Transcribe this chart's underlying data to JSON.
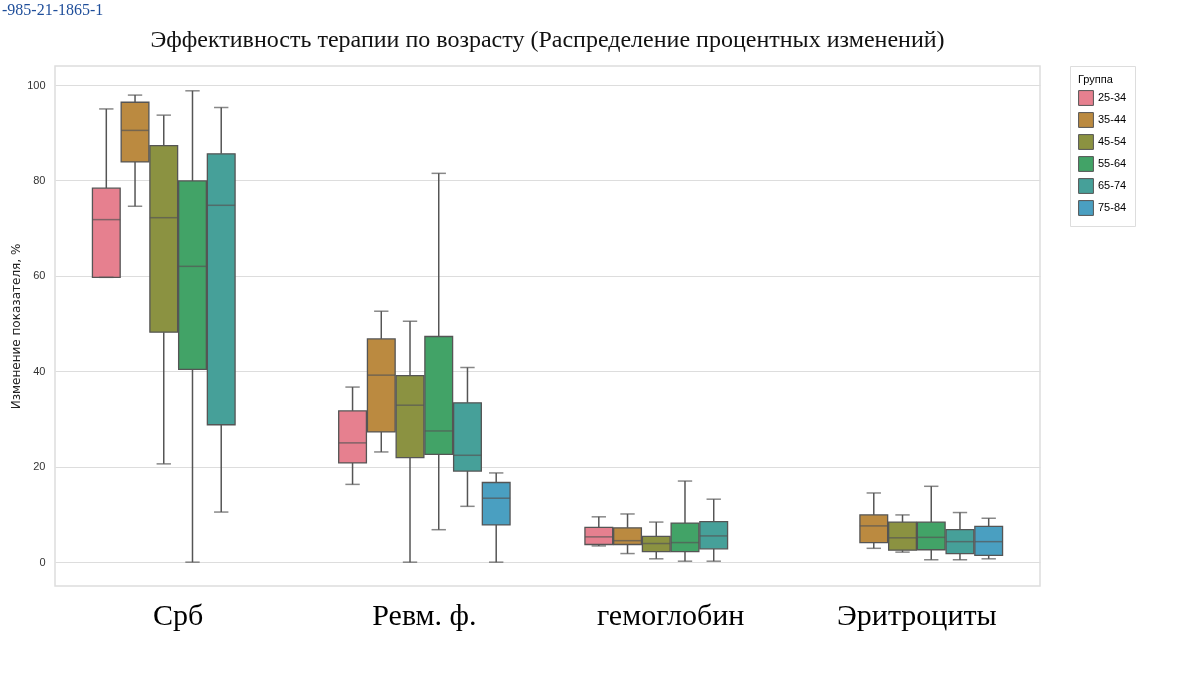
{
  "chart_data": {
    "type": "box",
    "title": "Эффективность терапии по возрасту (Распределение процентных изменений)",
    "ylabel": "Изменение показателя, %",
    "legend_title": "Группа",
    "annotations": [
      "-985-21-1865-1"
    ],
    "categories": [
      "Срб",
      "Ревм. ф.",
      "гемоглобин",
      "Эритроциты"
    ],
    "ylim": [
      -5,
      104
    ],
    "yticks": [
      0,
      20,
      40,
      60,
      80,
      100
    ],
    "grid": "y",
    "legend": "top right",
    "series": [
      {
        "name": "25-34",
        "color": "#e6808f",
        "boxes": [
          {
            "low": 59.7,
            "q1": 59.7,
            "median": 71.8,
            "q3": 78.4,
            "high": 95.0
          },
          {
            "low": 16.3,
            "q1": 20.8,
            "median": 25.0,
            "q3": 31.7,
            "high": 36.7
          },
          {
            "low": 3.4,
            "q1": 3.7,
            "median": 5.3,
            "q3": 7.3,
            "high": 9.5
          },
          null
        ]
      },
      {
        "name": "35-44",
        "color": "#bb8a40",
        "boxes": [
          {
            "low": 74.6,
            "q1": 83.9,
            "median": 90.5,
            "q3": 96.4,
            "high": 97.9
          },
          {
            "low": 23.1,
            "q1": 27.3,
            "median": 39.2,
            "q3": 46.8,
            "high": 52.6
          },
          {
            "low": 1.8,
            "q1": 3.7,
            "median": 4.5,
            "q3": 7.2,
            "high": 10.1
          },
          {
            "low": 2.9,
            "q1": 4.1,
            "median": 7.6,
            "q3": 9.9,
            "high": 14.5
          }
        ]
      },
      {
        "name": "45-54",
        "color": "#8b9241",
        "boxes": [
          {
            "low": 20.6,
            "q1": 48.2,
            "median": 72.2,
            "q3": 87.3,
            "high": 93.7
          },
          {
            "low": 0,
            "q1": 21.9,
            "median": 32.9,
            "q3": 39.1,
            "high": 50.5
          },
          {
            "low": 0.7,
            "q1": 2.2,
            "median": 3.9,
            "q3": 5.4,
            "high": 8.4
          },
          {
            "low": 2.1,
            "q1": 2.5,
            "median": 5.1,
            "q3": 8.4,
            "high": 9.9
          }
        ]
      },
      {
        "name": "55-64",
        "color": "#42a367",
        "boxes": [
          {
            "low": 0,
            "q1": 40.4,
            "median": 62.0,
            "q3": 79.9,
            "high": 98.8
          },
          {
            "low": 6.8,
            "q1": 22.6,
            "median": 27.5,
            "q3": 47.3,
            "high": 81.5
          },
          {
            "low": 0.2,
            "q1": 2.2,
            "median": 4.1,
            "q3": 8.2,
            "high": 17.0
          },
          {
            "low": 0.5,
            "q1": 2.6,
            "median": 5.2,
            "q3": 8.4,
            "high": 15.9
          }
        ]
      },
      {
        "name": "65-74",
        "color": "#46a099",
        "boxes": [
          {
            "low": 10.5,
            "q1": 28.8,
            "median": 74.8,
            "q3": 85.6,
            "high": 95.3
          },
          {
            "low": 11.7,
            "q1": 19.1,
            "median": 22.4,
            "q3": 33.4,
            "high": 40.8
          },
          {
            "low": 0.2,
            "q1": 2.8,
            "median": 5.5,
            "q3": 8.5,
            "high": 13.2
          },
          {
            "low": 0.5,
            "q1": 1.8,
            "median": 4.3,
            "q3": 6.8,
            "high": 10.4
          }
        ]
      },
      {
        "name": "75-84",
        "color": "#4a9fc1",
        "boxes": [
          null,
          {
            "low": 0,
            "q1": 7.8,
            "median": 13.4,
            "q3": 16.7,
            "high": 18.7
          },
          null,
          {
            "low": 0.7,
            "q1": 1.4,
            "median": 4.3,
            "q3": 7.5,
            "high": 9.2
          }
        ]
      }
    ]
  }
}
